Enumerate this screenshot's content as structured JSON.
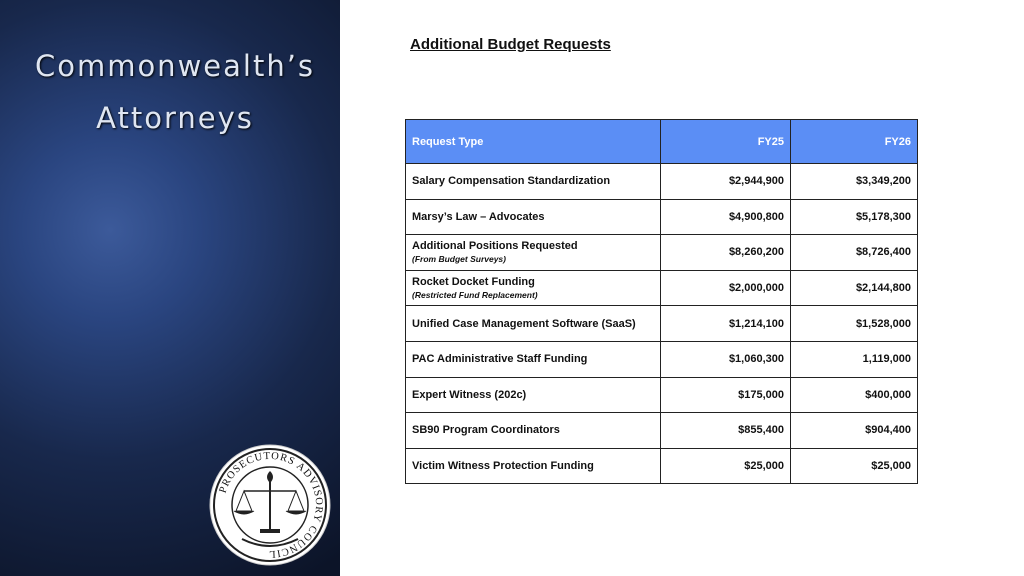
{
  "sidebar": {
    "title": "Commonwealth’s Attorneys",
    "seal_text": "PROSECUTORS ADVISORY COUNCIL"
  },
  "heading": "Additional Budget Requests",
  "table": {
    "header": [
      "Request Type",
      "FY25",
      "FY26"
    ],
    "rows": [
      {
        "type": "Salary Compensation Standardization",
        "fy25": "$2,944,900",
        "fy26": "$3,349,200"
      },
      {
        "type": "Marsy’s Law – Advocates",
        "fy25": "$4,900,800",
        "fy26": "$5,178,300"
      },
      {
        "type": "Additional Positions Requested",
        "note": "(From Budget Surveys)",
        "fy25": "$8,260,200",
        "fy26": "$8,726,400"
      },
      {
        "type": "Rocket Docket Funding",
        "note": "(Restricted Fund Replacement)",
        "fy25": "$2,000,000",
        "fy26": "$2,144,800"
      },
      {
        "type": "Unified Case Management Software (SaaS)",
        "fy25": "$1,214,100",
        "fy26": "$1,528,000"
      },
      {
        "type": "PAC Administrative Staff Funding",
        "fy25": "$1,060,300",
        "fy26": "1,119,000"
      },
      {
        "type": "Expert Witness (202c)",
        "fy25": "$175,000",
        "fy26": "$400,000"
      },
      {
        "type": "SB90 Program Coordinators",
        "fy25": "$855,400",
        "fy26": "$904,400"
      },
      {
        "type": "Victim Witness Protection Funding",
        "fy25": "$25,000",
        "fy26": "$25,000"
      }
    ]
  }
}
